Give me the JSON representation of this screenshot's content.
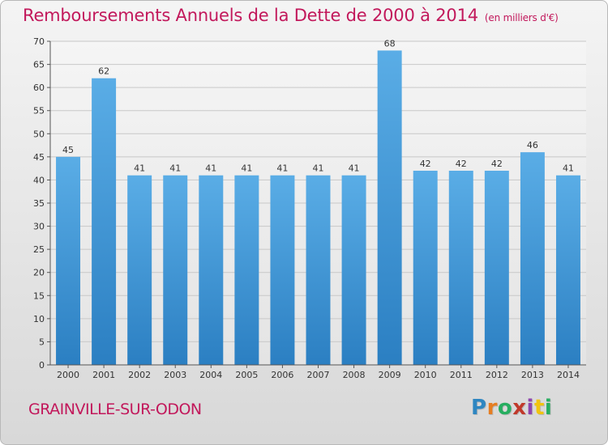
{
  "header": {
    "title": "Remboursements Annuels de la Dette de 2000 à 2014",
    "subtitle": "(en milliers d'€)"
  },
  "footer": {
    "commune": "GRAINVILLE-SUR-ODON",
    "logo_letters": [
      "P",
      "r",
      "o",
      "x",
      "i",
      "t",
      "i"
    ]
  },
  "colors": {
    "title": "#c2185b",
    "bar_top": "#5aade6",
    "bar_bottom": "#2b7fc2",
    "grid": "#c8c8c8"
  },
  "chart_data": {
    "type": "bar",
    "categories": [
      "2000",
      "2001",
      "2002",
      "2003",
      "2004",
      "2005",
      "2006",
      "2007",
      "2008",
      "2009",
      "2010",
      "2011",
      "2012",
      "2013",
      "2014"
    ],
    "values": [
      45,
      62,
      41,
      41,
      41,
      41,
      41,
      41,
      41,
      68,
      42,
      42,
      42,
      46,
      41
    ],
    "title": "Remboursements Annuels de la Dette de 2000 à 2014",
    "subtitle": "(en milliers d'€)",
    "xlabel": "",
    "ylabel": "",
    "ylim": [
      0,
      70
    ],
    "yticks": [
      0,
      5,
      10,
      15,
      20,
      25,
      30,
      35,
      40,
      45,
      50,
      55,
      60,
      65,
      70
    ],
    "grid": true,
    "legend": "none"
  }
}
